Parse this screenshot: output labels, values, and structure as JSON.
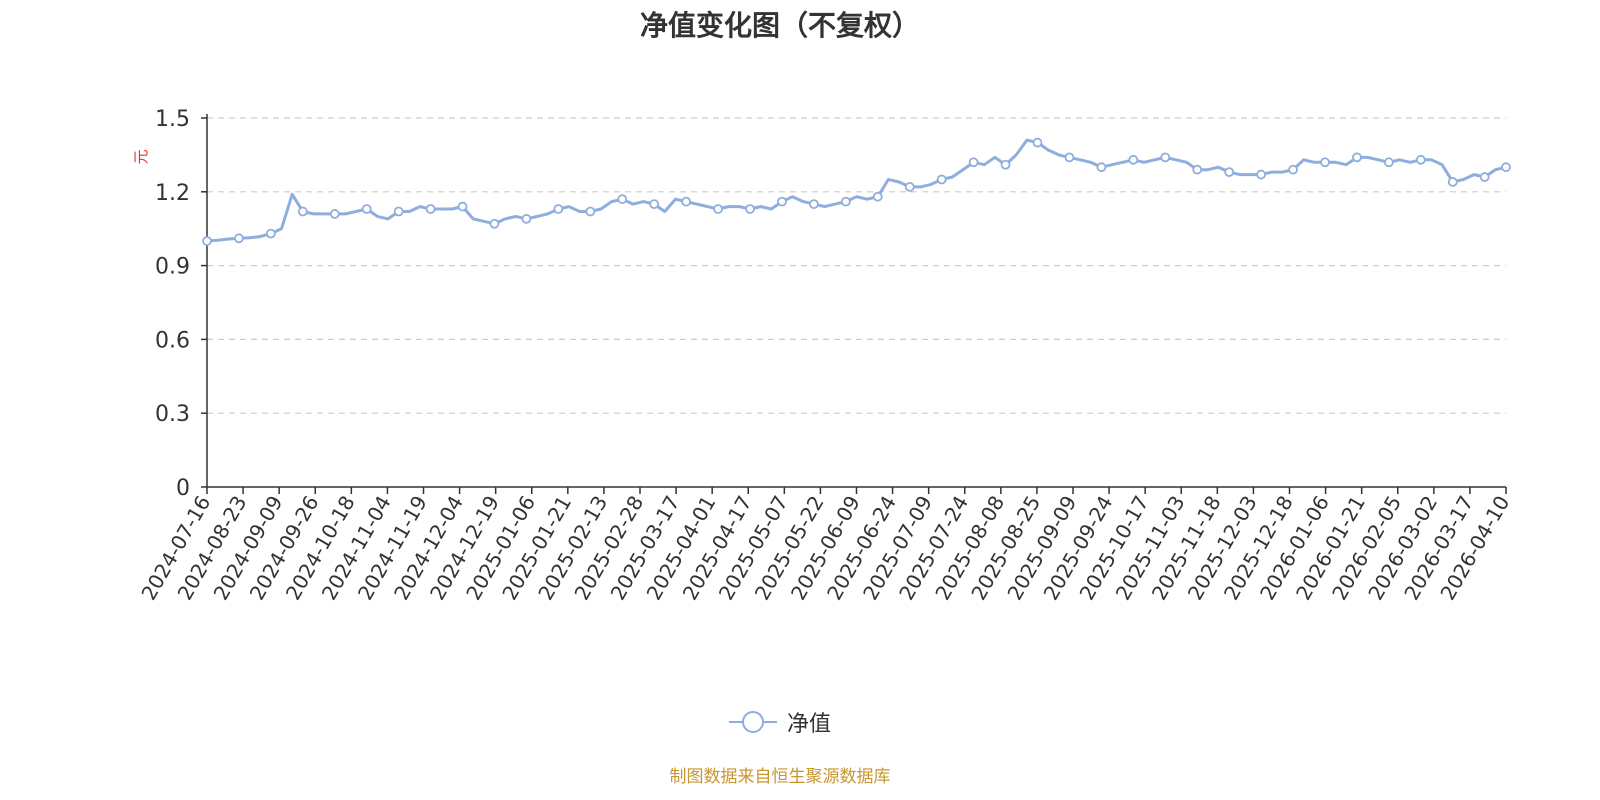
{
  "title": "净值变化图（不复权）",
  "source_note": "制图数据来自恒生聚源数据库",
  "colors": {
    "line": "#8eaede",
    "grid": "#cccccc",
    "axis": "#333333",
    "ylabel": "#e0312f",
    "source": "#c8962e"
  },
  "chart_data": {
    "type": "line",
    "title": "净值变化图（不复权）",
    "ylabel": "元",
    "ylim": [
      0,
      1.5
    ],
    "yticks": [
      "0",
      "0.3",
      "0.6",
      "0.9",
      "1.2",
      "1.5"
    ],
    "grid": true,
    "legend": "bottom-center",
    "x_ticks": [
      "2024-07-16",
      "2024-08-23",
      "2024-09-09",
      "2024-09-26",
      "2024-10-18",
      "2024-11-04",
      "2024-11-19",
      "2024-12-04",
      "2024-12-19",
      "2025-01-06",
      "2025-01-21",
      "2025-02-13",
      "2025-02-28",
      "2025-03-17",
      "2025-04-01",
      "2025-04-17",
      "2025-05-07",
      "2025-05-22",
      "2025-06-09",
      "2025-06-24",
      "2025-07-09",
      "2025-07-24",
      "2025-08-08",
      "2025-08-25",
      "2025-09-09",
      "2025-09-24",
      "2025-10-17",
      "2025-11-03",
      "2025-11-18",
      "2025-12-03",
      "2025-12-18",
      "2026-01-06",
      "2026-01-21",
      "2026-02-05",
      "2026-03-02",
      "2026-03-17",
      "2026-04-10"
    ],
    "series": [
      {
        "name": "净值",
        "values": [
          1.0,
          1.003,
          1.008,
          1.011,
          1.013,
          1.018,
          1.03,
          1.05,
          1.19,
          1.12,
          1.11,
          1.11,
          1.11,
          1.11,
          1.12,
          1.13,
          1.1,
          1.09,
          1.12,
          1.12,
          1.14,
          1.13,
          1.13,
          1.13,
          1.14,
          1.09,
          1.08,
          1.07,
          1.09,
          1.1,
          1.09,
          1.1,
          1.11,
          1.13,
          1.14,
          1.12,
          1.12,
          1.13,
          1.16,
          1.17,
          1.15,
          1.16,
          1.15,
          1.12,
          1.17,
          1.16,
          1.15,
          1.14,
          1.13,
          1.14,
          1.14,
          1.13,
          1.14,
          1.13,
          1.16,
          1.18,
          1.16,
          1.15,
          1.14,
          1.15,
          1.16,
          1.18,
          1.17,
          1.18,
          1.25,
          1.24,
          1.22,
          1.22,
          1.23,
          1.25,
          1.26,
          1.29,
          1.32,
          1.31,
          1.34,
          1.31,
          1.35,
          1.41,
          1.4,
          1.37,
          1.35,
          1.34,
          1.33,
          1.32,
          1.3,
          1.31,
          1.32,
          1.33,
          1.32,
          1.33,
          1.34,
          1.33,
          1.32,
          1.29,
          1.29,
          1.3,
          1.28,
          1.27,
          1.27,
          1.27,
          1.28,
          1.28,
          1.29,
          1.33,
          1.32,
          1.32,
          1.32,
          1.31,
          1.34,
          1.34,
          1.33,
          1.32,
          1.33,
          1.32,
          1.33,
          1.33,
          1.31,
          1.24,
          1.25,
          1.27,
          1.26,
          1.29,
          1.3
        ]
      }
    ]
  }
}
